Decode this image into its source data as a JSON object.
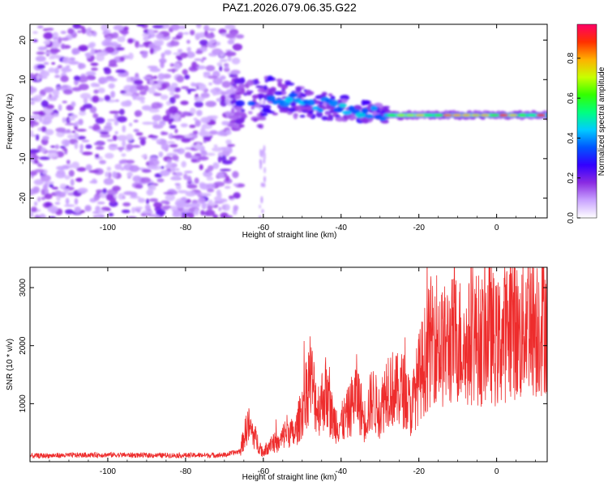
{
  "title": "PAZ1.2026.079.06.35.G22",
  "chart_data": [
    {
      "type": "heatmap",
      "xlabel": "Height of straight line (km)",
      "ylabel": "Frequency (Hz)",
      "xlim": [
        -120,
        13
      ],
      "ylim": [
        -25,
        24
      ],
      "xticks": [
        -100,
        -80,
        -60,
        -40,
        -20,
        0
      ],
      "yticks": [
        -20,
        -10,
        0,
        10,
        20
      ],
      "colorbar": {
        "label": "Normalized spectral amplitude",
        "range": [
          0,
          0.97
        ],
        "ticks": [
          0.0,
          0.2,
          0.4,
          0.6,
          0.8
        ],
        "colors": [
          "#ffffff",
          "#c9a3ff",
          "#8a2be2",
          "#3300ff",
          "#0055ff",
          "#00ccff",
          "#00ff80",
          "#33ff00",
          "#c8ff00",
          "#ffb000",
          "#ff3000",
          "#ff0066"
        ]
      },
      "regions": [
        {
          "name": "noise",
          "x_range": [
            -120,
            -66
          ],
          "freq_range": [
            -25,
            24
          ],
          "amplitude": 0.1
        },
        {
          "name": "signal onset",
          "x_range": [
            -68,
            -60
          ],
          "freq_center": 4,
          "amplitude": 0.35
        },
        {
          "name": "signal transition",
          "x_range": [
            -60,
            -28
          ],
          "freq_center_start": 6,
          "freq_center_end": 1,
          "amplitude": 0.45
        },
        {
          "name": "carrier",
          "x_range": [
            -28,
            13
          ],
          "freq_center": 1,
          "amplitude": 0.9
        }
      ]
    },
    {
      "type": "line",
      "xlabel": "Height of straight line (km)",
      "ylabel": "SNR (10 * v/v)",
      "xlim": [
        -120,
        13
      ],
      "ylim": [
        0,
        3350
      ],
      "xticks": [
        -100,
        -80,
        -60,
        -40,
        -20,
        0
      ],
      "yticks": [
        1000,
        2000,
        3000
      ],
      "color": "#ee2c2c",
      "series": [
        {
          "name": "SNR",
          "x": [
            -120,
            -110,
            -100,
            -90,
            -80,
            -70,
            -66,
            -64,
            -62,
            -60,
            -58,
            -56,
            -54,
            -52,
            -50,
            -48,
            -46,
            -44,
            -42,
            -40,
            -38,
            -36,
            -34,
            -32,
            -30,
            -28,
            -26,
            -24,
            -22,
            -20,
            -18,
            -16,
            -14,
            -12,
            -10,
            -8,
            -6,
            -4,
            -2,
            0,
            2,
            4,
            6,
            8,
            10,
            13
          ],
          "values": [
            100,
            110,
            120,
            110,
            110,
            115,
            180,
            650,
            400,
            150,
            350,
            300,
            550,
            450,
            900,
            1500,
            900,
            1200,
            700,
            650,
            850,
            1200,
            700,
            1100,
            850,
            1350,
            1200,
            1250,
            900,
            1450,
            1850,
            2250,
            1950,
            2050,
            2150,
            1900,
            2200,
            2050,
            2300,
            2000,
            2200,
            2450,
            2100,
            2600,
            2350,
            2550
          ]
        }
      ]
    }
  ]
}
